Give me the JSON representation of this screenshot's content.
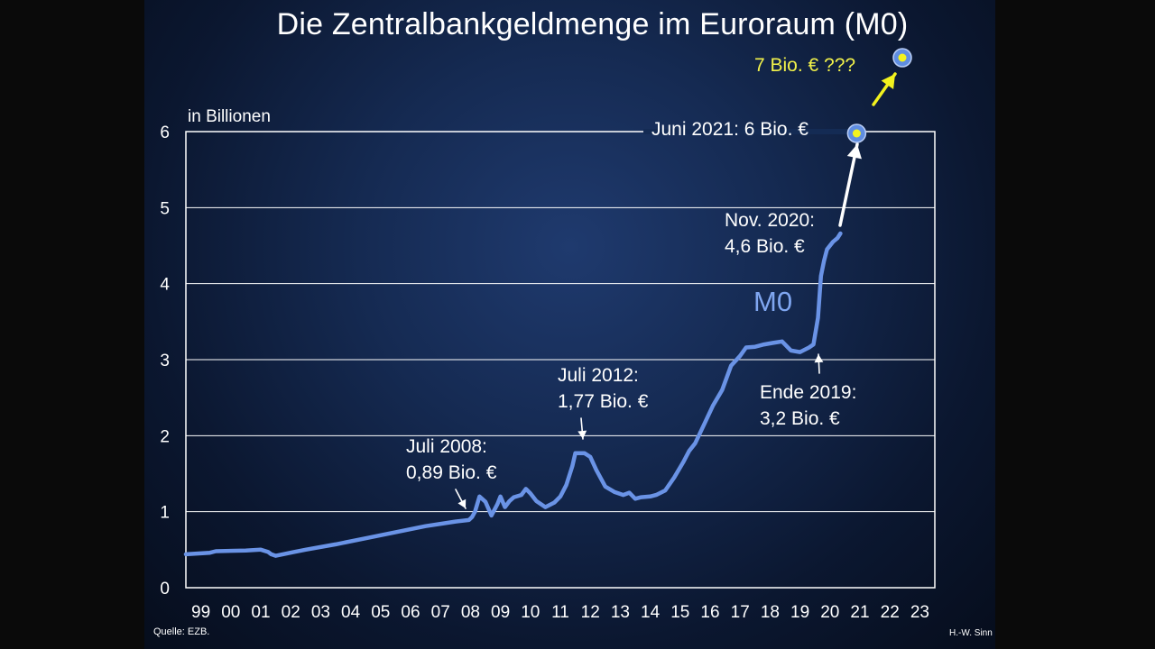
{
  "chart_data": {
    "type": "line",
    "title": "Die Zentralbankgeldmenge im Euroraum (M0)",
    "ylabel": "in Billionen",
    "xlabel": "",
    "ylim": [
      0,
      6
    ],
    "yticks": [
      "0",
      "1",
      "2",
      "3",
      "4",
      "5",
      "6"
    ],
    "xlim": [
      1999,
      2024
    ],
    "xticks": [
      "99",
      "00",
      "01",
      "02",
      "03",
      "04",
      "05",
      "06",
      "07",
      "08",
      "09",
      "10",
      "11",
      "12",
      "13",
      "14",
      "15",
      "16",
      "17",
      "18",
      "19",
      "20",
      "21",
      "22",
      "23"
    ],
    "grid": true,
    "series": [
      {
        "name": "M0",
        "color": "#6a93e6",
        "x": [
          1999.0,
          1999.8,
          2000.0,
          2001.0,
          2001.5,
          2001.75,
          2001.85,
          2002.0,
          2002.6,
          2003.0,
          2004.0,
          2005.0,
          2006.0,
          2007.0,
          2008.0,
          2008.45,
          2008.55,
          2008.65,
          2008.8,
          2009.0,
          2009.2,
          2009.4,
          2009.5,
          2009.65,
          2009.8,
          2009.95,
          2010.2,
          2010.35,
          2010.5,
          2010.7,
          2011.0,
          2011.3,
          2011.5,
          2011.7,
          2011.9,
          2012.0,
          2012.3,
          2012.5,
          2012.7,
          2013.0,
          2013.3,
          2013.6,
          2013.8,
          2014.0,
          2014.2,
          2014.5,
          2014.7,
          2014.85,
          2015.0,
          2015.3,
          2015.6,
          2015.8,
          2016.0,
          2016.3,
          2016.6,
          2016.9,
          2017.2,
          2017.5,
          2017.7,
          2018.0,
          2018.3,
          2018.6,
          2018.9,
          2019.2,
          2019.5,
          2019.8,
          2019.95,
          2020.1,
          2020.2,
          2020.3,
          2020.4,
          2020.6,
          2020.75,
          2020.85
        ],
        "values": [
          0.44,
          0.46,
          0.48,
          0.49,
          0.5,
          0.47,
          0.44,
          0.42,
          0.47,
          0.5,
          0.57,
          0.65,
          0.73,
          0.81,
          0.87,
          0.89,
          0.93,
          1.0,
          1.2,
          1.13,
          0.95,
          1.1,
          1.2,
          1.06,
          1.14,
          1.19,
          1.22,
          1.3,
          1.24,
          1.14,
          1.06,
          1.12,
          1.2,
          1.35,
          1.6,
          1.77,
          1.77,
          1.72,
          1.55,
          1.33,
          1.26,
          1.22,
          1.25,
          1.17,
          1.19,
          1.2,
          1.22,
          1.25,
          1.28,
          1.45,
          1.65,
          1.8,
          1.9,
          2.15,
          2.4,
          2.6,
          2.92,
          3.05,
          3.16,
          3.17,
          3.2,
          3.22,
          3.24,
          3.12,
          3.1,
          3.16,
          3.2,
          3.55,
          4.1,
          4.3,
          4.45,
          4.55,
          4.6,
          4.66
        ]
      }
    ],
    "series_label": "M0",
    "annotations": {
      "jul2008": {
        "line1": "Juli 2008:",
        "line2": "0,89 Bio. €"
      },
      "jul2012": {
        "line1": "Juli 2012:",
        "line2": "1,77 Bio. €"
      },
      "ende2019": {
        "line1": "Ende 2019:",
        "line2": "3,2 Bio. €"
      },
      "nov2020": {
        "line1": "Nov. 2020:",
        "line2": "4,6 Bio. €"
      },
      "jun2021": {
        "text": "Juni 2021: 6 Bio. €",
        "x": 2021.0,
        "value": 6.0
      },
      "projection": {
        "text": "7 Bio. € ???",
        "x": 2022.6,
        "value": 7.0
      }
    }
  },
  "footer": {
    "source": "Quelle: EZB.",
    "author": "H.-W. Sinn"
  },
  "colors": {
    "line": "#6a93e6",
    "series_label": "#7fa6f0",
    "projection_text": "#f2f24a",
    "arrow_yellow": "#f2f21e",
    "grid": "#ffffff"
  }
}
